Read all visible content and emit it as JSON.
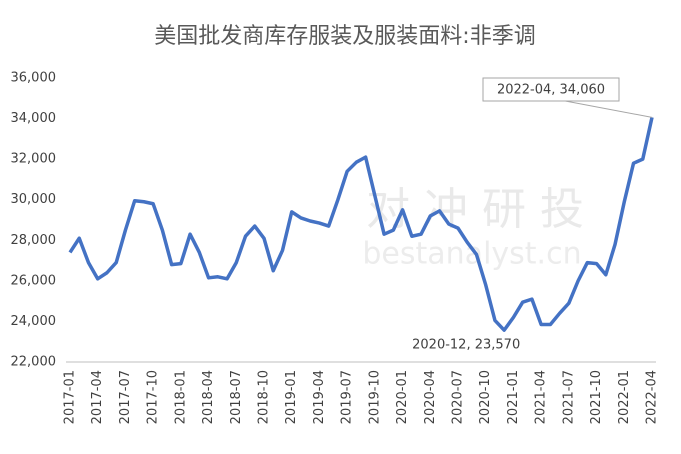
{
  "chart_data": {
    "type": "line",
    "title": "美国批发商库存服装及服装面料:非季调",
    "watermark": [
      "对 冲 研 投",
      "bestanalyst.cn"
    ],
    "categories": [
      "2017-01",
      null,
      null,
      "2017-04",
      null,
      null,
      "2017-07",
      null,
      null,
      "2017-10",
      null,
      null,
      "2018-01",
      null,
      null,
      "2018-04",
      null,
      null,
      "2018-07",
      null,
      null,
      "2018-10",
      null,
      null,
      "2019-01",
      null,
      null,
      "2019-04",
      null,
      null,
      "2019-07",
      null,
      null,
      "2019-10",
      null,
      null,
      "2020-01",
      null,
      null,
      "2020-04",
      null,
      null,
      "2020-07",
      null,
      null,
      "2020-10",
      null,
      null,
      "2021-01",
      null,
      null,
      "2021-04",
      null,
      null,
      "2021-07",
      null,
      null,
      "2021-10",
      null,
      null,
      "2022-01",
      null,
      null,
      "2022-04"
    ],
    "series": [
      {
        "name": "美国批发商库存服装及服装面料",
        "color": "#4472c4",
        "values": [
          27400,
          28100,
          26900,
          26100,
          26400,
          26900,
          28500,
          29950,
          29900,
          29800,
          28500,
          26800,
          26850,
          28300,
          27400,
          26150,
          26200,
          26100,
          26900,
          28200,
          28700,
          28100,
          26500,
          27500,
          29400,
          29100,
          28950,
          28850,
          28700,
          30000,
          31400,
          31850,
          32100,
          30200,
          28300,
          28500,
          29500,
          28200,
          28300,
          29200,
          29450,
          28800,
          28600,
          27900,
          27300,
          25800,
          24050,
          23570,
          24200,
          24950,
          25100,
          23850,
          23850,
          24400,
          24900,
          26000,
          26900,
          26850,
          26300,
          27800,
          29900,
          31800,
          32000,
          34060
        ]
      }
    ],
    "annotations": [
      {
        "text": "2022-04, 34,060",
        "index": 63
      },
      {
        "text": "2020-12, 23,570",
        "index": 47
      }
    ],
    "ylim": [
      22000,
      36000
    ],
    "yticks": [
      {
        "value": 22000,
        "label": "22,000"
      },
      {
        "value": 24000,
        "label": "24,000"
      },
      {
        "value": 26000,
        "label": "26,000"
      },
      {
        "value": 28000,
        "label": "28,000"
      },
      {
        "value": 30000,
        "label": "30,000"
      },
      {
        "value": 32000,
        "label": "32,000"
      },
      {
        "value": 34000,
        "label": "34,000"
      },
      {
        "value": 36000,
        "label": "36,000"
      }
    ],
    "grid": false
  }
}
